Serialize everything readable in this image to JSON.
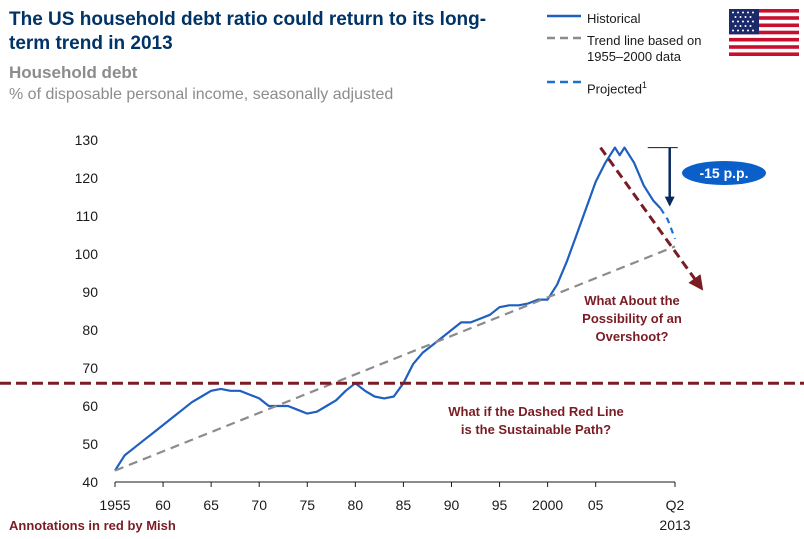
{
  "header": {
    "title": "The US household debt ratio could return to its long-term trend in 2013",
    "subtitle": "Household debt",
    "unit": "% of disposable personal income, seasonally adjusted"
  },
  "legend": {
    "historical": "Historical",
    "trend": "Trend line based on 1955–2000 data",
    "projected": "Projected",
    "projected_sup": "1"
  },
  "flag_icon": "us-flag-icon",
  "footer": "Annotations in red by Mish",
  "colors": {
    "historical": "#1f5fbf",
    "trend": "#8c8c8c",
    "projected": "#1f6fd1",
    "annotation": "#7a1c24",
    "badge": "#0a5fc8",
    "arrow_down": "#0a2a5e"
  },
  "chart_data": {
    "type": "line",
    "xlim": [
      1955,
      2013.25
    ],
    "ylim": [
      40,
      130
    ],
    "yticks": [
      40,
      50,
      60,
      70,
      80,
      90,
      100,
      110,
      120,
      130
    ],
    "xticks": [
      {
        "value": 1955,
        "label": "1955"
      },
      {
        "value": 1960,
        "label": "60"
      },
      {
        "value": 1965,
        "label": "65"
      },
      {
        "value": 1970,
        "label": "70"
      },
      {
        "value": 1975,
        "label": "75"
      },
      {
        "value": 1980,
        "label": "80"
      },
      {
        "value": 1985,
        "label": "85"
      },
      {
        "value": 1990,
        "label": "90"
      },
      {
        "value": 1995,
        "label": "95"
      },
      {
        "value": 2000,
        "label": "2000"
      },
      {
        "value": 2005,
        "label": "05"
      },
      {
        "value": 2013.25,
        "label": "Q2\n2013"
      }
    ],
    "series": [
      {
        "name": "Historical",
        "style": "solid",
        "points": [
          [
            1955,
            43
          ],
          [
            1956,
            47
          ],
          [
            1957,
            49
          ],
          [
            1958,
            51
          ],
          [
            1959,
            53
          ],
          [
            1960,
            55
          ],
          [
            1961,
            57
          ],
          [
            1962,
            59
          ],
          [
            1963,
            61
          ],
          [
            1964,
            62.5
          ],
          [
            1965,
            64
          ],
          [
            1966,
            64.5
          ],
          [
            1967,
            64
          ],
          [
            1968,
            64
          ],
          [
            1969,
            63
          ],
          [
            1970,
            62
          ],
          [
            1971,
            60
          ],
          [
            1972,
            60
          ],
          [
            1973,
            60
          ],
          [
            1974,
            59
          ],
          [
            1975,
            58
          ],
          [
            1976,
            58.5
          ],
          [
            1977,
            60
          ],
          [
            1978,
            61.5
          ],
          [
            1979,
            64
          ],
          [
            1980,
            66
          ],
          [
            1981,
            64
          ],
          [
            1982,
            62.5
          ],
          [
            1983,
            62
          ],
          [
            1984,
            62.5
          ],
          [
            1985,
            66
          ],
          [
            1986,
            71
          ],
          [
            1987,
            74
          ],
          [
            1988,
            76
          ],
          [
            1989,
            78
          ],
          [
            1990,
            80
          ],
          [
            1991,
            82
          ],
          [
            1992,
            82
          ],
          [
            1993,
            83
          ],
          [
            1994,
            84
          ],
          [
            1995,
            86
          ],
          [
            1996,
            86.5
          ],
          [
            1997,
            86.5
          ],
          [
            1998,
            87
          ],
          [
            1999,
            88
          ],
          [
            2000,
            88
          ],
          [
            2001,
            92
          ],
          [
            2002,
            98
          ],
          [
            2003,
            105
          ],
          [
            2004,
            112
          ],
          [
            2005,
            119
          ],
          [
            2006,
            124
          ],
          [
            2007,
            128
          ],
          [
            2007.5,
            126
          ],
          [
            2008,
            128
          ],
          [
            2009,
            124
          ],
          [
            2010,
            118
          ],
          [
            2011,
            114
          ],
          [
            2011.75,
            112
          ]
        ]
      },
      {
        "name": "Trend line based on 1955–2000 data",
        "style": "dashed",
        "points": [
          [
            1955,
            43
          ],
          [
            2013.25,
            102
          ]
        ]
      },
      {
        "name": "Projected",
        "style": "dashed",
        "points": [
          [
            2011.75,
            112
          ],
          [
            2012.5,
            109
          ],
          [
            2013.25,
            104
          ]
        ]
      }
    ],
    "annotations": {
      "badge": "-15 p.p.",
      "overshoot": [
        "What About the",
        "Possibility of an",
        "Overshoot?"
      ],
      "sustainable": [
        "What if the Dashed Red Line",
        "is the Sustainable Path?"
      ],
      "sustainable_level": 66,
      "overshoot_arrow": {
        "from": [
          2005.5,
          128
        ],
        "to": [
          2016,
          91
        ]
      },
      "drop_arrow": {
        "x": 2012.7,
        "from": 128,
        "to": 113
      }
    }
  }
}
